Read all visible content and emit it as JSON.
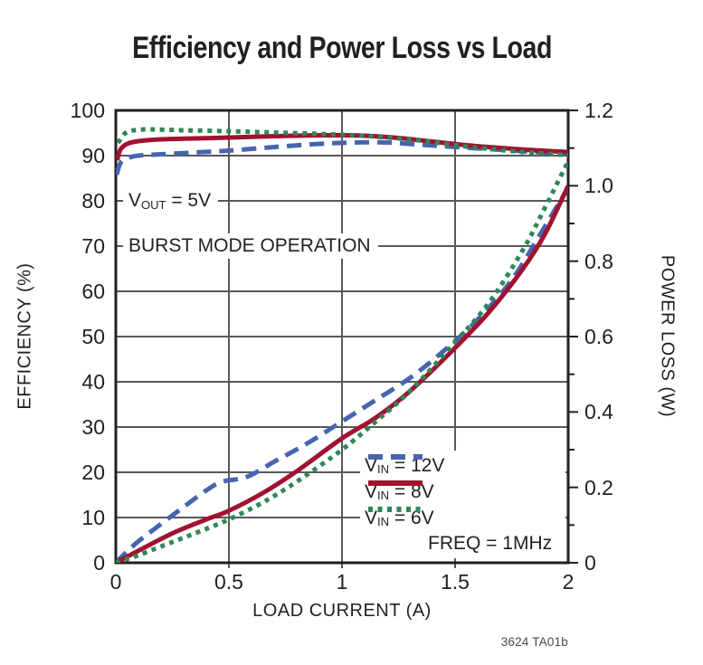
{
  "title": "Efficiency and Power Loss vs Load",
  "footer": "3624 TA01b",
  "colors": {
    "background": "#ffffff",
    "grid": "#58595b",
    "axis_border": "#231f20",
    "text": "#231f20",
    "series_12v": "#4565af",
    "series_8v": "#a0122f",
    "series_6v": "#2f8757"
  },
  "annotations": [
    {
      "pre": "V",
      "sub": "OUT",
      "post": " = 5V"
    },
    {
      "pre": "BURST MODE OPERATION",
      "sub": "",
      "post": ""
    }
  ],
  "chart_data": {
    "type": "line",
    "title": "Efficiency and Power Loss vs Load",
    "grid": true,
    "legend_position": "inside-bottom-right",
    "legend_note": "FREQ = 1MHz",
    "x_axis": {
      "label": "LOAD CURRENT (A)",
      "min": 0,
      "max": 2,
      "ticks": [
        0,
        0.5,
        1,
        1.5,
        2
      ],
      "tick_labels": [
        "0",
        "0.5",
        "1",
        "1.5",
        "2"
      ]
    },
    "y_left": {
      "label": "EFFICIENCY (%)",
      "min": 0,
      "max": 100,
      "ticks": [
        0,
        10,
        20,
        30,
        40,
        50,
        60,
        70,
        80,
        90,
        100
      ],
      "tick_labels": [
        "0",
        "10",
        "20",
        "30",
        "40",
        "50",
        "60",
        "70",
        "80",
        "90",
        "100"
      ]
    },
    "y_right": {
      "label": "POWER LOSS (W)",
      "min": 0,
      "max": 1.2,
      "major_ticks": [
        0,
        0.2,
        0.4,
        0.6,
        0.8,
        1.0,
        1.2
      ],
      "tick_labels": [
        "0",
        "0.2",
        "0.4",
        "0.6",
        "0.8",
        "1.0",
        "1.2"
      ],
      "minor_ticks": [
        0.1,
        0.3,
        0.5,
        0.7,
        0.9,
        1.1
      ]
    },
    "series": [
      {
        "id": "vin-12v",
        "label_pre": "V",
        "label_sub": "IN",
        "label_post": " = 12V",
        "color": "#4565af",
        "line_style": "dashed",
        "dash": "16 9",
        "efficiency_pct": [
          [
            0.004,
            85.8
          ],
          [
            0.02,
            88.3
          ],
          [
            0.05,
            89.4
          ],
          [
            0.1,
            90.0
          ],
          [
            0.2,
            90.3
          ],
          [
            0.35,
            90.7
          ],
          [
            0.5,
            91.1
          ],
          [
            0.7,
            91.9
          ],
          [
            0.9,
            92.6
          ],
          [
            1.05,
            92.9
          ],
          [
            1.2,
            92.9
          ],
          [
            1.35,
            92.4
          ],
          [
            1.5,
            91.9
          ],
          [
            1.7,
            91.3
          ],
          [
            1.85,
            90.8
          ],
          [
            2.0,
            90.5
          ]
        ],
        "power_loss_w": [
          [
            0,
            0
          ],
          [
            0.05,
            0.03
          ],
          [
            0.1,
            0.057
          ],
          [
            0.2,
            0.103
          ],
          [
            0.3,
            0.148
          ],
          [
            0.4,
            0.192
          ],
          [
            0.47,
            0.215
          ],
          [
            0.58,
            0.228
          ],
          [
            0.7,
            0.268
          ],
          [
            0.85,
            0.318
          ],
          [
            1.0,
            0.375
          ],
          [
            1.15,
            0.432
          ],
          [
            1.3,
            0.49
          ],
          [
            1.45,
            0.562
          ],
          [
            1.6,
            0.645
          ],
          [
            1.75,
            0.75
          ],
          [
            1.88,
            0.875
          ],
          [
            2.0,
            0.995
          ]
        ]
      },
      {
        "id": "vin-8v",
        "label_pre": "V",
        "label_sub": "IN",
        "label_post": " = 8V",
        "color": "#a0122f",
        "line_style": "solid",
        "dash": "",
        "efficiency_pct": [
          [
            0.006,
            89.0
          ],
          [
            0.02,
            91.3
          ],
          [
            0.05,
            92.6
          ],
          [
            0.1,
            93.2
          ],
          [
            0.2,
            93.6
          ],
          [
            0.35,
            93.8
          ],
          [
            0.5,
            94.0
          ],
          [
            0.7,
            94.3
          ],
          [
            0.9,
            94.5
          ],
          [
            1.1,
            94.4
          ],
          [
            1.25,
            93.9
          ],
          [
            1.4,
            93.1
          ],
          [
            1.55,
            92.3
          ],
          [
            1.7,
            91.7
          ],
          [
            1.85,
            91.2
          ],
          [
            2.0,
            90.8
          ]
        ],
        "power_loss_w": [
          [
            0,
            0
          ],
          [
            0.1,
            0.032
          ],
          [
            0.25,
            0.078
          ],
          [
            0.4,
            0.115
          ],
          [
            0.5,
            0.138
          ],
          [
            0.65,
            0.185
          ],
          [
            0.8,
            0.243
          ],
          [
            1.0,
            0.33
          ],
          [
            1.15,
            0.385
          ],
          [
            1.3,
            0.455
          ],
          [
            1.5,
            0.57
          ],
          [
            1.65,
            0.665
          ],
          [
            1.8,
            0.78
          ],
          [
            1.9,
            0.875
          ],
          [
            2.0,
            1.0
          ]
        ]
      },
      {
        "id": "vin-6v",
        "label_pre": "V",
        "label_sub": "IN",
        "label_post": " = 6V",
        "color": "#2f8757",
        "line_style": "dotted",
        "dash": "5 5.5",
        "efficiency_pct": [
          [
            0.01,
            92.8
          ],
          [
            0.04,
            94.9
          ],
          [
            0.08,
            95.6
          ],
          [
            0.15,
            95.8
          ],
          [
            0.3,
            95.6
          ],
          [
            0.5,
            95.4
          ],
          [
            0.7,
            95.1
          ],
          [
            0.9,
            94.8
          ],
          [
            1.05,
            94.5
          ],
          [
            1.2,
            94.0
          ],
          [
            1.35,
            93.3
          ],
          [
            1.5,
            92.3
          ],
          [
            1.65,
            91.5
          ],
          [
            1.8,
            90.8
          ],
          [
            2.0,
            90.1
          ]
        ],
        "power_loss_w": [
          [
            0,
            0
          ],
          [
            0.1,
            0.02
          ],
          [
            0.25,
            0.055
          ],
          [
            0.4,
            0.09
          ],
          [
            0.5,
            0.115
          ],
          [
            0.65,
            0.16
          ],
          [
            0.8,
            0.215
          ],
          [
            1.0,
            0.3
          ],
          [
            1.15,
            0.375
          ],
          [
            1.3,
            0.455
          ],
          [
            1.5,
            0.585
          ],
          [
            1.65,
            0.69
          ],
          [
            1.8,
            0.83
          ],
          [
            1.9,
            0.945
          ],
          [
            2.0,
            1.065
          ]
        ]
      }
    ]
  }
}
